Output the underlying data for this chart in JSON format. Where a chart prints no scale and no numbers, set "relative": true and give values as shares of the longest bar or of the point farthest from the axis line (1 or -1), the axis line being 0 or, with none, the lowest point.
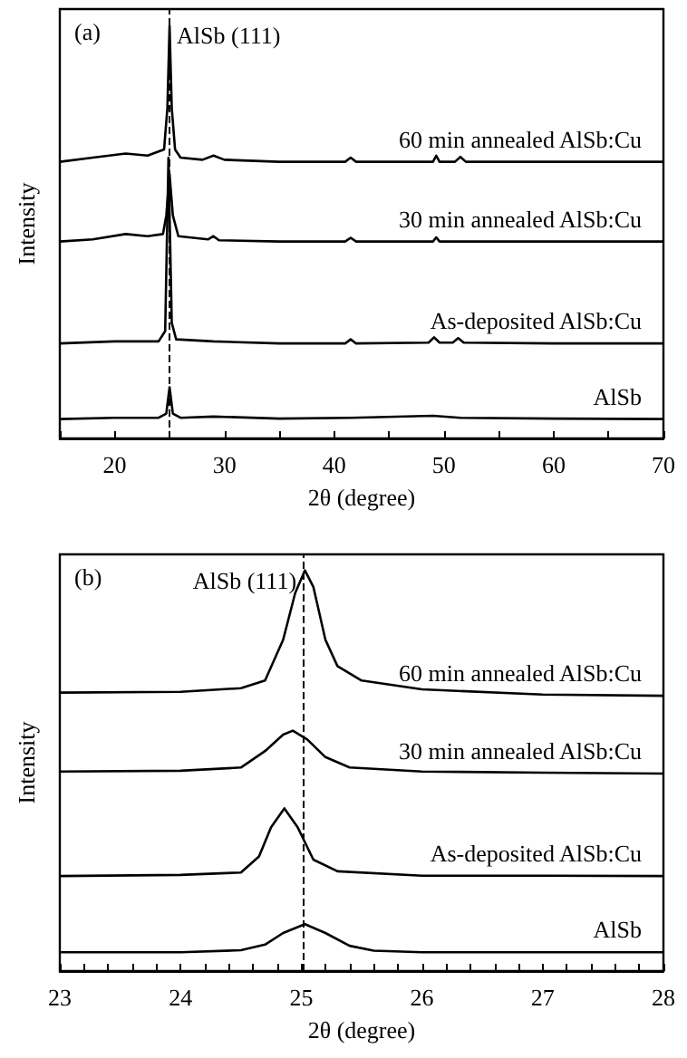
{
  "chart_data": [
    {
      "type": "line",
      "relative": true,
      "xlabel": "2θ (degree)",
      "ylabel": "Intensity",
      "tick_labels": "x",
      "marker": "none",
      "line_style": "solid",
      "legend": false,
      "grid": false,
      "xlim": [
        15,
        70
      ],
      "xticks": [
        {
          "value": 15,
          "label": null
        },
        20,
        {
          "value": 25,
          "label": null
        },
        30,
        {
          "value": 35,
          "label": null
        },
        40,
        {
          "value": 45,
          "label": null
        },
        50,
        {
          "value": 55,
          "label": null
        },
        60,
        {
          "value": 65,
          "label": null
        },
        70
      ],
      "annotations": [
        "(a)"
      ],
      "ref_lines": [
        {
          "axis": "x",
          "value": 25,
          "label": "AlSb (111)",
          "line_style": "dashed",
          "color": "#000000"
        }
      ],
      "series": [
        {
          "name": "AlSb",
          "color": "#000000",
          "x": [
            15,
            20,
            24,
            24.7,
            25,
            25.3,
            26,
            29,
            35,
            41.5,
            49,
            51.5,
            60,
            70
          ],
          "values": [
            0.047,
            0.05,
            0.05,
            0.06,
            0.124,
            0.06,
            0.05,
            0.053,
            0.048,
            0.05,
            0.055,
            0.05,
            0.048,
            0.047
          ]
        },
        {
          "name": "As-deposited AlSb:Cu",
          "color": "#000000",
          "x": [
            15,
            20,
            24,
            24.6,
            24.9,
            25.2,
            25.6,
            29,
            35,
            41,
            41.5,
            42,
            48.6,
            49.1,
            49.6,
            50.8,
            51.3,
            51.8,
            60,
            70
          ],
          "values": [
            0.23,
            0.235,
            0.235,
            0.26,
            0.68,
            0.28,
            0.24,
            0.235,
            0.23,
            0.23,
            0.24,
            0.23,
            0.232,
            0.245,
            0.232,
            0.232,
            0.243,
            0.232,
            0.23,
            0.23
          ]
        },
        {
          "name": "30 min annealed AlSb:Cu",
          "color": "#000000",
          "x": [
            15,
            18,
            21,
            23,
            24.4,
            24.7,
            25,
            25.3,
            25.8,
            28.5,
            29,
            29.5,
            35,
            41,
            41.5,
            42,
            49,
            49.3,
            49.6,
            60,
            70
          ],
          "values": [
            0.477,
            0.482,
            0.495,
            0.49,
            0.495,
            0.54,
            0.64,
            0.54,
            0.49,
            0.482,
            0.49,
            0.48,
            0.477,
            0.477,
            0.486,
            0.477,
            0.477,
            0.487,
            0.477,
            0.477,
            0.477
          ]
        },
        {
          "name": "60 min annealed AlSb:Cu",
          "color": "#000000",
          "x": [
            15,
            18,
            21,
            23,
            24.5,
            24.8,
            25,
            25.2,
            25.5,
            26,
            28,
            29,
            30,
            35,
            41,
            41.5,
            42,
            49,
            49.3,
            49.6,
            51,
            51.5,
            52,
            60,
            70
          ],
          "values": [
            0.67,
            0.68,
            0.69,
            0.685,
            0.7,
            0.8,
            1.0,
            0.8,
            0.7,
            0.68,
            0.675,
            0.685,
            0.675,
            0.67,
            0.67,
            0.68,
            0.67,
            0.67,
            0.685,
            0.67,
            0.67,
            0.682,
            0.67,
            0.67,
            0.67
          ]
        }
      ]
    },
    {
      "type": "line",
      "relative": true,
      "xlabel": "2θ (degree)",
      "ylabel": "Intensity",
      "tick_labels": "x",
      "marker": "none",
      "line_style": "solid",
      "legend": false,
      "grid": false,
      "xlim": [
        23,
        28
      ],
      "xticks": [
        23,
        {
          "value": 23.2,
          "label": null
        },
        {
          "value": 23.4,
          "label": null
        },
        {
          "value": 23.6,
          "label": null
        },
        {
          "value": 23.8,
          "label": null
        },
        24,
        {
          "value": 24.2,
          "label": null
        },
        {
          "value": 24.4,
          "label": null
        },
        {
          "value": 24.6,
          "label": null
        },
        {
          "value": 24.8,
          "label": null
        },
        25,
        {
          "value": 25.2,
          "label": null
        },
        {
          "value": 25.4,
          "label": null
        },
        {
          "value": 25.6,
          "label": null
        },
        {
          "value": 25.8,
          "label": null
        },
        26,
        {
          "value": 26.2,
          "label": null
        },
        {
          "value": 26.4,
          "label": null
        },
        {
          "value": 26.6,
          "label": null
        },
        {
          "value": 26.8,
          "label": null
        },
        27,
        {
          "value": 27.2,
          "label": null
        },
        {
          "value": 27.4,
          "label": null
        },
        {
          "value": 27.6,
          "label": null
        },
        {
          "value": 27.8,
          "label": null
        },
        28
      ],
      "annotations": [
        "(b)"
      ],
      "ref_lines": [
        {
          "axis": "x",
          "value": 25.02,
          "label": "AlSb (111)",
          "line_style": "dashed",
          "color": "#000000"
        }
      ],
      "series": [
        {
          "name": "AlSb",
          "color": "#000000",
          "x": [
            23,
            24,
            24.5,
            24.7,
            24.85,
            25.03,
            25.2,
            25.4,
            25.6,
            26,
            27,
            28
          ],
          "values": [
            0.047,
            0.047,
            0.052,
            0.066,
            0.095,
            0.117,
            0.095,
            0.063,
            0.051,
            0.047,
            0.047,
            0.047
          ]
        },
        {
          "name": "As-deposited AlSb:Cu",
          "color": "#000000",
          "x": [
            23,
            24,
            24.5,
            24.65,
            24.75,
            24.86,
            24.97,
            25.1,
            25.3,
            26,
            27,
            28
          ],
          "values": [
            0.237,
            0.24,
            0.246,
            0.286,
            0.359,
            0.406,
            0.359,
            0.278,
            0.249,
            0.238,
            0.238,
            0.237
          ]
        },
        {
          "name": "30 min annealed AlSb:Cu",
          "color": "#000000",
          "x": [
            23,
            24,
            24.5,
            24.7,
            24.85,
            24.93,
            25.05,
            25.2,
            25.4,
            26,
            27,
            28
          ],
          "values": [
            0.498,
            0.5,
            0.508,
            0.549,
            0.59,
            0.6,
            0.578,
            0.534,
            0.508,
            0.498,
            0.495,
            0.493
          ]
        },
        {
          "name": "60 min annealed AlSb:Cu",
          "color": "#000000",
          "x": [
            23,
            24,
            24.5,
            24.7,
            24.85,
            24.95,
            25.03,
            25.1,
            25.2,
            25.3,
            25.5,
            26,
            27,
            28
          ],
          "values": [
            0.695,
            0.697,
            0.706,
            0.725,
            0.827,
            0.944,
            1.0,
            0.959,
            0.827,
            0.761,
            0.725,
            0.703,
            0.69,
            0.687
          ]
        }
      ]
    }
  ]
}
